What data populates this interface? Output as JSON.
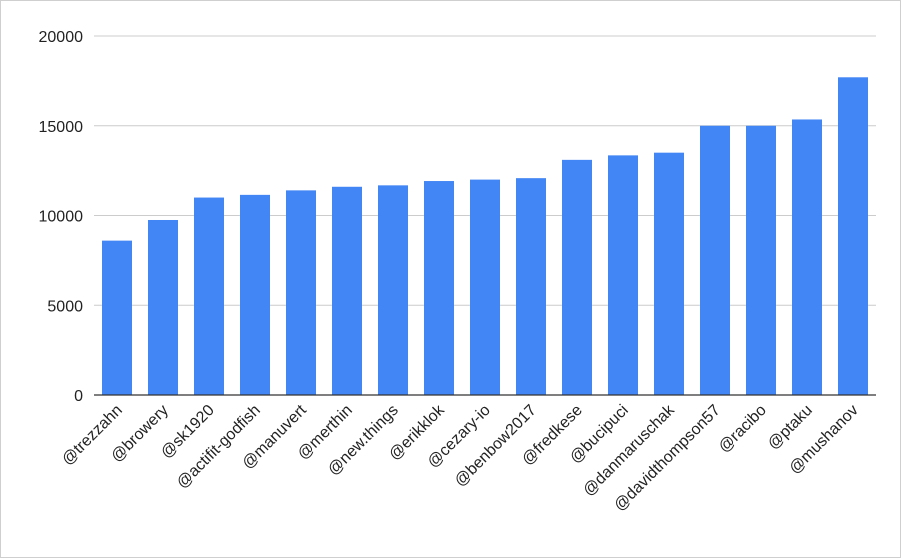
{
  "chart_data": {
    "type": "bar",
    "title": "",
    "xlabel": "",
    "ylabel": "",
    "categories": [
      "@trezzahn",
      "@browery",
      "@sk1920",
      "@actifit-godfish",
      "@manuvert",
      "@merthin",
      "@new.things",
      "@erikklok",
      "@cezary-io",
      "@benbow2017",
      "@fredkese",
      "@bucipuci",
      "@danmaruschak",
      "@davidthompson57",
      "@racibo",
      "@ptaku",
      "@mushanov"
    ],
    "values": [
      8600,
      9750,
      11000,
      11150,
      11400,
      11600,
      11680,
      11920,
      12000,
      12080,
      13100,
      13350,
      13500,
      15000,
      15000,
      15350,
      17700
    ],
    "ylim": [
      0,
      20000
    ],
    "yticks": [
      "0",
      "5000",
      "10000",
      "15000",
      "20000"
    ],
    "grid": true,
    "legend": "none",
    "bar_color": "#4285f4",
    "grid_color": "#cccccc",
    "axis_color": "#333333"
  }
}
